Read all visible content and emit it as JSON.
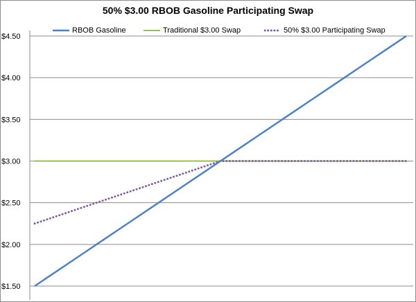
{
  "chart_data": {
    "type": "line",
    "title": "50% $3.00 RBOB Gasoline Participating Swap",
    "xlabel": "",
    "ylabel": "",
    "ylim": [
      1.5,
      4.5
    ],
    "ytick_values": [
      1.5,
      2.0,
      2.5,
      3.0,
      3.5,
      4.0,
      4.5
    ],
    "ytick_labels": [
      "$1.50",
      "$2.00",
      "$2.50",
      "$3.00",
      "$3.50",
      "$4.00",
      "$4.50"
    ],
    "grid": true,
    "legend": "top",
    "x": [
      1.5,
      1.6,
      1.7,
      1.8,
      1.9,
      2.0,
      2.1,
      2.2,
      2.3,
      2.4,
      2.5,
      2.6,
      2.7,
      2.8,
      2.9,
      3.0,
      3.1,
      3.2,
      3.3,
      3.4,
      3.5,
      3.6,
      3.7,
      3.8,
      3.9,
      4.0,
      4.1,
      4.2,
      4.3,
      4.4,
      4.5
    ],
    "series": [
      {
        "name": "RBOB Gasoline",
        "color": "#4f81bd",
        "style": "solid",
        "values": [
          1.5,
          1.6,
          1.7,
          1.8,
          1.9,
          2.0,
          2.1,
          2.2,
          2.3,
          2.4,
          2.5,
          2.6,
          2.7,
          2.8,
          2.9,
          3.0,
          3.1,
          3.2,
          3.3,
          3.4,
          3.5,
          3.6,
          3.7,
          3.8,
          3.9,
          4.0,
          4.1,
          4.2,
          4.3,
          4.4,
          4.5
        ]
      },
      {
        "name": "Traditional $3.00 Swap",
        "color": "#9bbb59",
        "style": "solid",
        "values": [
          3.0,
          3.0,
          3.0,
          3.0,
          3.0,
          3.0,
          3.0,
          3.0,
          3.0,
          3.0,
          3.0,
          3.0,
          3.0,
          3.0,
          3.0,
          3.0,
          3.0,
          3.0,
          3.0,
          3.0,
          3.0,
          3.0,
          3.0,
          3.0,
          3.0,
          3.0,
          3.0,
          3.0,
          3.0,
          3.0,
          3.0
        ]
      },
      {
        "name": "50% $3.00 Participating Swap",
        "color": "#8064a2",
        "style": "dotted",
        "values": [
          2.25,
          2.3,
          2.35,
          2.4,
          2.45,
          2.5,
          2.55,
          2.6,
          2.65,
          2.7,
          2.75,
          2.8,
          2.85,
          2.9,
          2.95,
          3.0,
          3.0,
          3.0,
          3.0,
          3.0,
          3.0,
          3.0,
          3.0,
          3.0,
          3.0,
          3.0,
          3.0,
          3.0,
          3.0,
          3.0,
          3.0
        ]
      }
    ]
  }
}
